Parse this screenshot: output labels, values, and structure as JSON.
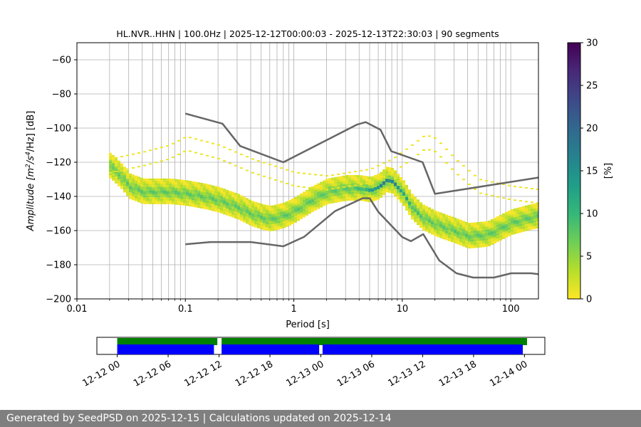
{
  "footer": {
    "text": "Generated by SeedPSD on 2025-12-15 | Calculations updated on 2025-12-14"
  },
  "chart_data": {
    "type": "heatmap",
    "title": "HL.NVR..HHN | 100.0Hz | 2025-12-12T00:00:03 - 2025-12-13T22:30:03 | 90 segments",
    "xlabel": "Period [s]",
    "ylabel_parts": [
      "Amplitude [m",
      "2",
      "/s",
      "4",
      "/Hz] [dB]"
    ],
    "x_scale": "log",
    "xlim": [
      0.01,
      180
    ],
    "ylim": [
      -200,
      -50
    ],
    "x_ticks": [
      0.01,
      0.1,
      1,
      10,
      100
    ],
    "x_tick_labels": [
      "0.01",
      "0.1",
      "1",
      "10",
      "100"
    ],
    "y_ticks": [
      -200,
      -180,
      -160,
      -140,
      -120,
      -100,
      -80,
      -60
    ],
    "y_tick_labels": [
      "−200",
      "−180",
      "−160",
      "−140",
      "−120",
      "−100",
      "−80",
      "−60"
    ],
    "grid": true,
    "colorbar": {
      "label": "[%]",
      "range": [
        0,
        30
      ],
      "ticks": [
        0,
        5,
        10,
        15,
        20,
        25,
        30
      ],
      "colors": [
        "#fde725",
        "#b5de2b",
        "#6ece58",
        "#35b779",
        "#1f9e89",
        "#26828e",
        "#31688e",
        "#3e4989",
        "#482878",
        "#440154"
      ]
    },
    "mode_curve": {
      "period": [
        0.02,
        0.025,
        0.03,
        0.04,
        0.05,
        0.07,
        0.1,
        0.15,
        0.2,
        0.3,
        0.4,
        0.5,
        0.6,
        0.8,
        1.0,
        1.5,
        2.0,
        3.0,
        4.0,
        5.0,
        6.0,
        7.0,
        8.0,
        10.0,
        12.0,
        15.0,
        20.0,
        30.0,
        40.0,
        60.0,
        80.0,
        100.0,
        150.0,
        180.0
      ],
      "db": [
        -122,
        -128,
        -134,
        -137,
        -137,
        -137,
        -138,
        -140,
        -142,
        -146,
        -150,
        -152,
        -153,
        -151,
        -148,
        -141,
        -137,
        -135,
        -135,
        -136,
        -134,
        -130,
        -131,
        -138,
        -146,
        -152,
        -156,
        -160,
        -163,
        -162,
        -158,
        -155,
        -152,
        -151
      ]
    },
    "spread_db": [
      [
        -6,
        0.8
      ],
      [
        -4,
        2.5
      ],
      [
        -2,
        5.0
      ],
      [
        0,
        7.0
      ],
      [
        2,
        5.0
      ],
      [
        4,
        2.5
      ],
      [
        6,
        1.2
      ]
    ],
    "sparse_band": {
      "period": [
        0.02,
        0.04,
        0.07,
        0.1,
        0.2,
        0.4,
        1,
        2,
        5,
        8,
        12,
        16,
        20,
        30,
        50,
        100,
        180
      ],
      "db": [
        -118,
        -114,
        -110,
        -105,
        -110,
        -118,
        -126,
        -128,
        -124,
        -118,
        -110,
        -104,
        -106,
        -118,
        -130,
        -134,
        -136
      ]
    },
    "noise_models": [
      {
        "period": [
          0.1,
          0.22,
          0.32,
          0.8,
          3.8,
          4.6,
          6.3,
          7.9,
          15.4,
          20,
          354.8
        ],
        "db": [
          -91.5,
          -97.4,
          -110.5,
          -120,
          -98,
          -96.5,
          -101,
          -113.5,
          -120,
          -138.5,
          -126
        ]
      },
      {
        "period": [
          0.1,
          0.17,
          0.4,
          0.8,
          1.24,
          2.4,
          4.3,
          5,
          6,
          10,
          12,
          15.6,
          21.9,
          31.6,
          45,
          70,
          101,
          154,
          180
        ],
        "db": [
          -168,
          -166.7,
          -166.7,
          -169.2,
          -163.7,
          -148.6,
          -141.1,
          -141.1,
          -149,
          -163.8,
          -166.2,
          -162.1,
          -177.5,
          -185,
          -187.5,
          -187.5,
          -185,
          -185,
          -185.5
        ]
      }
    ],
    "timeline": {
      "x_tick_labels": [
        "12-12 00",
        "12-12 06",
        "12-12 12",
        "12-12 18",
        "12-13 00",
        "12-13 06",
        "12-13 12",
        "12-13 18",
        "12-14 00"
      ],
      "x_range_hours": [
        -2.4,
        50.4
      ],
      "green_segments_hours": [
        [
          0,
          11.8
        ],
        [
          12.3,
          48.3
        ]
      ],
      "blue_segments_hours": [
        [
          0,
          11.4
        ],
        [
          12.3,
          23.8
        ],
        [
          24.2,
          47.8
        ]
      ]
    }
  }
}
